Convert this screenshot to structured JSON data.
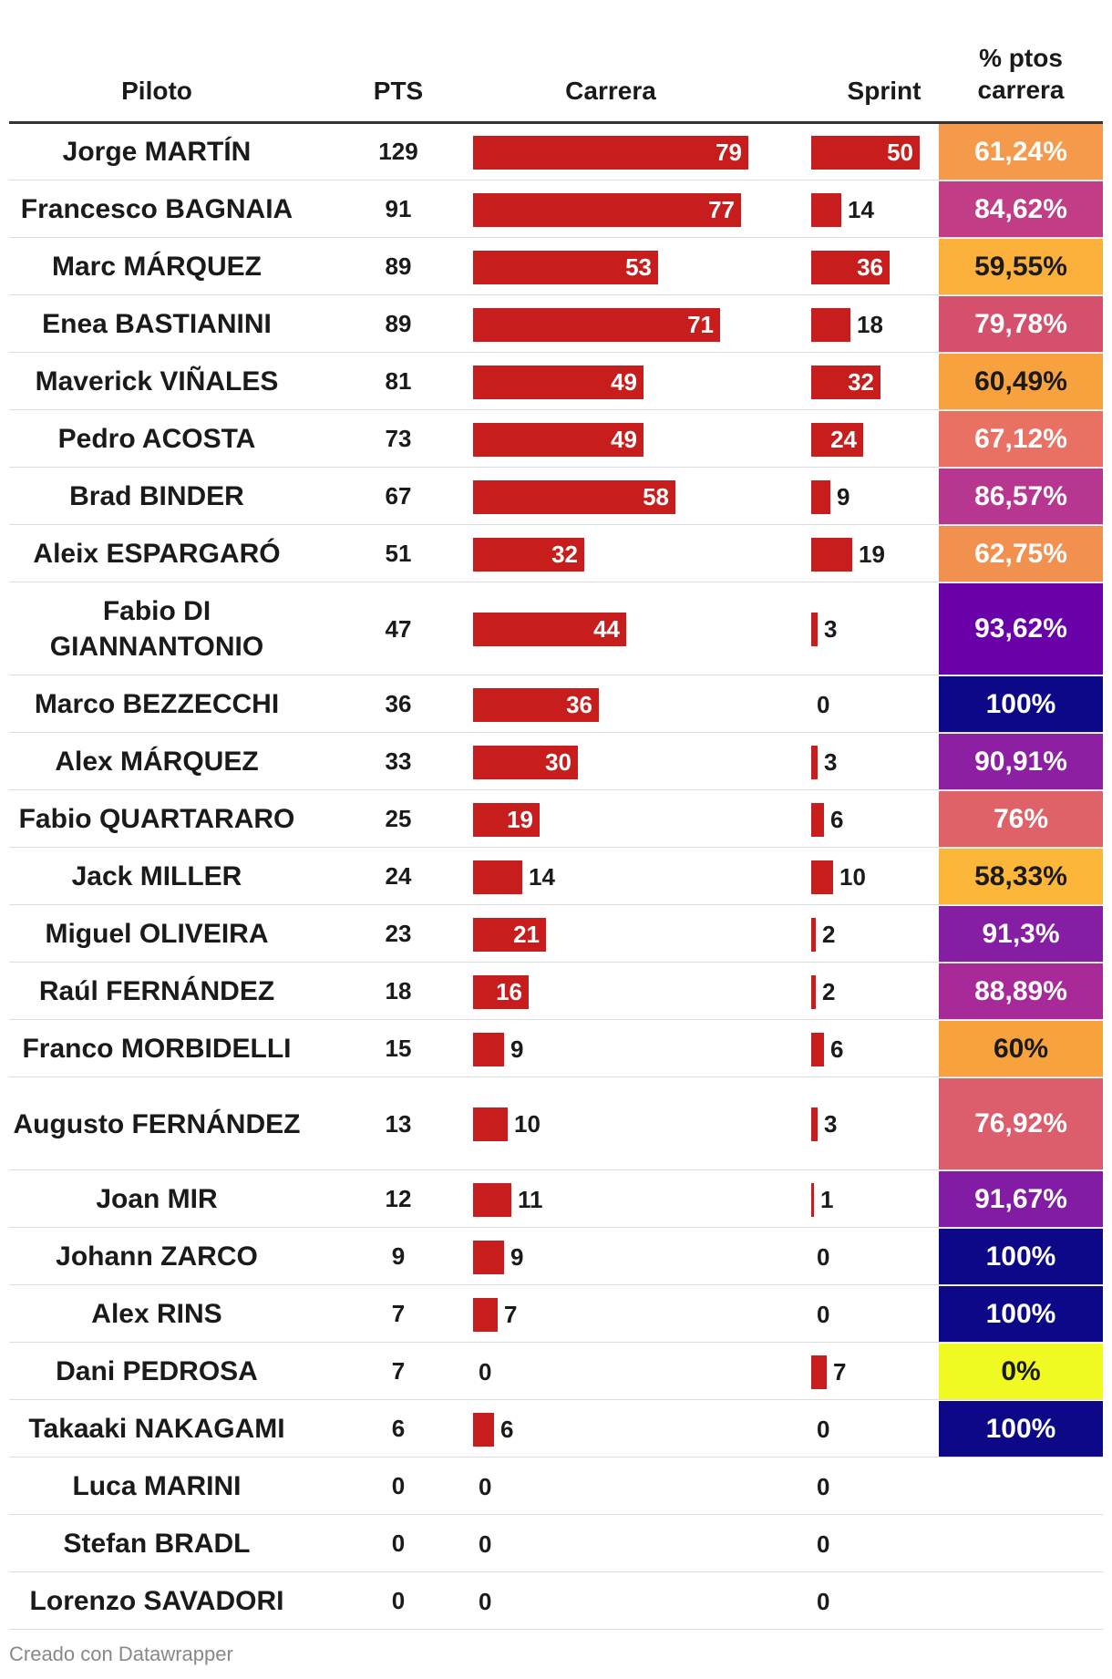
{
  "headers": {
    "piloto": "Piloto",
    "pts": "PTS",
    "carrera": "Carrera",
    "sprint": "Sprint",
    "pct_line1": "% ptos",
    "pct_line2": "carrera"
  },
  "footer": "Creado con Datawrapper",
  "colors": {
    "bar": "#c71e1d",
    "header_rule": "#333333",
    "row_divider": "#dddddd"
  },
  "chart_data": {
    "type": "table",
    "columns": [
      "Piloto",
      "PTS",
      "Carrera",
      "Sprint",
      "% ptos carrera"
    ],
    "carrera_max": 79,
    "sprint_max": 50,
    "rows": [
      {
        "piloto": "Jorge MARTÍN",
        "pts": "129",
        "carrera": 79,
        "sprint": 50,
        "pct": "61,24%",
        "pct_bg": "#f59a4a",
        "pct_fg": "#ffffff"
      },
      {
        "piloto": "Francesco BAGNAIA",
        "pts": "91",
        "carrera": 77,
        "sprint": 14,
        "pct": "84,62%",
        "pct_bg": "#c13e87",
        "pct_fg": "#ffffff"
      },
      {
        "piloto": "Marc MÁRQUEZ",
        "pts": "89",
        "carrera": 53,
        "sprint": 36,
        "pct": "59,55%",
        "pct_bg": "#fbb03b",
        "pct_fg": "#1a1a1a"
      },
      {
        "piloto": "Enea BASTIANINI",
        "pts": "89",
        "carrera": 71,
        "sprint": 18,
        "pct": "79,78%",
        "pct_bg": "#d4506c",
        "pct_fg": "#ffffff"
      },
      {
        "piloto": "Maverick VIÑALES",
        "pts": "81",
        "carrera": 49,
        "sprint": 32,
        "pct": "60,49%",
        "pct_bg": "#f7a23f",
        "pct_fg": "#1a1a1a"
      },
      {
        "piloto": "Pedro ACOSTA",
        "pts": "73",
        "carrera": 49,
        "sprint": 24,
        "pct": "67,12%",
        "pct_bg": "#e87163",
        "pct_fg": "#ffffff"
      },
      {
        "piloto": "Brad BINDER",
        "pts": "67",
        "carrera": 58,
        "sprint": 9,
        "pct": "86,57%",
        "pct_bg": "#b7368f",
        "pct_fg": "#ffffff"
      },
      {
        "piloto": "Aleix ESPARGARÓ",
        "pts": "51",
        "carrera": 32,
        "sprint": 19,
        "pct": "62,75%",
        "pct_bg": "#f2914f",
        "pct_fg": "#ffffff"
      },
      {
        "piloto": "Fabio DI GIANNANTONIO",
        "pts": "47",
        "carrera": 44,
        "sprint": 3,
        "pct": "93,62%",
        "pct_bg": "#6a00a8",
        "pct_fg": "#ffffff"
      },
      {
        "piloto": "Marco BEZZECCHI",
        "pts": "36",
        "carrera": 36,
        "sprint": 0,
        "pct": "100%",
        "pct_bg": "#0d0887",
        "pct_fg": "#ffffff"
      },
      {
        "piloto": "Alex MÁRQUEZ",
        "pts": "33",
        "carrera": 30,
        "sprint": 3,
        "pct": "90,91%",
        "pct_bg": "#8c1fa2",
        "pct_fg": "#ffffff"
      },
      {
        "piloto": "Fabio QUARTARARO",
        "pts": "25",
        "carrera": 19,
        "sprint": 6,
        "pct": "76%",
        "pct_bg": "#df6269",
        "pct_fg": "#ffffff"
      },
      {
        "piloto": "Jack MILLER",
        "pts": "24",
        "carrera": 14,
        "sprint": 10,
        "pct": "58,33%",
        "pct_bg": "#fcb73a",
        "pct_fg": "#1a1a1a"
      },
      {
        "piloto": "Miguel OLIVEIRA",
        "pts": "23",
        "carrera": 21,
        "sprint": 2,
        "pct": "91,3%",
        "pct_bg": "#861ea4",
        "pct_fg": "#ffffff"
      },
      {
        "piloto": "Raúl FERNÁNDEZ",
        "pts": "18",
        "carrera": 16,
        "sprint": 2,
        "pct": "88,89%",
        "pct_bg": "#a72a98",
        "pct_fg": "#ffffff"
      },
      {
        "piloto": "Franco MORBIDELLI",
        "pts": "15",
        "carrera": 9,
        "sprint": 6,
        "pct": "60%",
        "pct_bg": "#f8a23e",
        "pct_fg": "#1a1a1a"
      },
      {
        "piloto": "Augusto FERNÁNDEZ",
        "pts": "13",
        "carrera": 10,
        "sprint": 3,
        "pct": "76,92%",
        "pct_bg": "#dc5d6b",
        "pct_fg": "#ffffff"
      },
      {
        "piloto": "Joan MIR",
        "pts": "12",
        "carrera": 11,
        "sprint": 1,
        "pct": "91,67%",
        "pct_bg": "#821ca5",
        "pct_fg": "#ffffff"
      },
      {
        "piloto": "Johann ZARCO",
        "pts": "9",
        "carrera": 9,
        "sprint": 0,
        "pct": "100%",
        "pct_bg": "#0d0887",
        "pct_fg": "#ffffff"
      },
      {
        "piloto": "Alex RINS",
        "pts": "7",
        "carrera": 7,
        "sprint": 0,
        "pct": "100%",
        "pct_bg": "#0d0887",
        "pct_fg": "#ffffff"
      },
      {
        "piloto": "Dani PEDROSA",
        "pts": "7",
        "carrera": 0,
        "sprint": 7,
        "pct": "0%",
        "pct_bg": "#f0f921",
        "pct_fg": "#1a1a1a"
      },
      {
        "piloto": "Takaaki NAKAGAMI",
        "pts": "6",
        "carrera": 6,
        "sprint": 0,
        "pct": "100%",
        "pct_bg": "#0d0887",
        "pct_fg": "#ffffff"
      },
      {
        "piloto": "Luca MARINI",
        "pts": "0",
        "carrera": 0,
        "sprint": 0,
        "pct": "",
        "pct_bg": "",
        "pct_fg": ""
      },
      {
        "piloto": "Stefan BRADL",
        "pts": "0",
        "carrera": 0,
        "sprint": 0,
        "pct": "",
        "pct_bg": "",
        "pct_fg": ""
      },
      {
        "piloto": "Lorenzo SAVADORI",
        "pts": "0",
        "carrera": 0,
        "sprint": 0,
        "pct": "",
        "pct_bg": "",
        "pct_fg": ""
      }
    ]
  }
}
